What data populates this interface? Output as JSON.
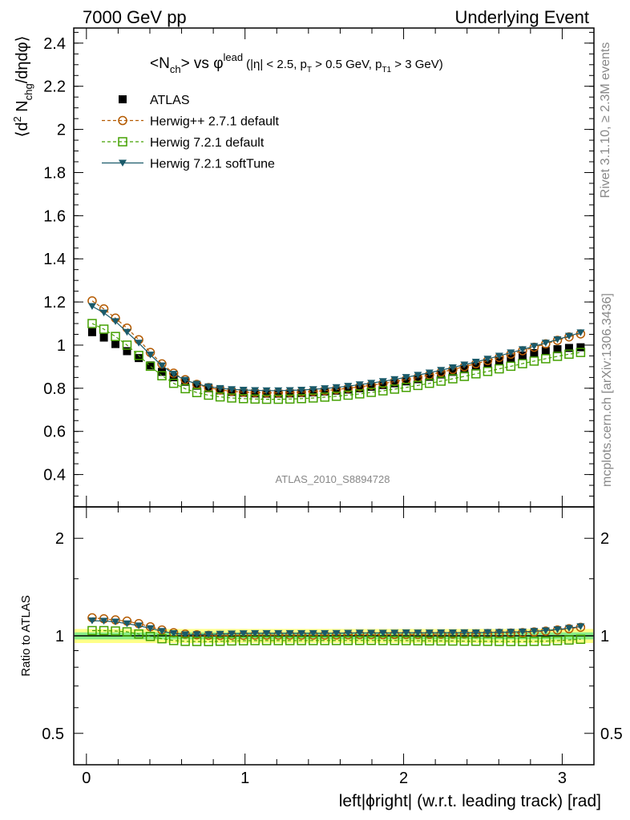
{
  "header": {
    "left": "7000 GeV pp",
    "right": "Underlying Event"
  },
  "side_text": {
    "rivet": "Rivet 3.1.10, ≥ 2.3M events",
    "mcplots": "mcplots.cern.ch [arXiv:1306.3436]"
  },
  "analysis_id": "ATLAS_2010_S8894728",
  "chart_data": [
    {
      "type": "scatter",
      "panel": "main",
      "title_parts": {
        "n": "<N",
        "n_sub": "ch",
        "vs": "> vs φ",
        "sup": "lead",
        "cuts_a": "(|η| < 2.5, p",
        "cuts_sub1": "T",
        "cuts_b": " > 0.5 GeV, p",
        "cuts_sub2": "T1",
        "cuts_c": " > 3 GeV)"
      },
      "ylabel_parts": {
        "a": "⟨d",
        "sup": "2",
        "b": " N",
        "sub": "chg",
        "c": "/dηdφ⟩"
      },
      "xlim": [
        -0.08,
        3.2
      ],
      "ylim": [
        0.25,
        2.47
      ],
      "yticks": [
        0.4,
        0.6,
        0.8,
        1,
        1.2,
        1.4,
        1.6,
        1.8,
        2,
        2.2,
        2.4
      ],
      "ytick_labels": [
        "0.4",
        "0.6",
        "0.8",
        "1",
        "1.2",
        "1.4",
        "1.6",
        "1.8",
        "2",
        "2.2",
        "2.4"
      ],
      "legend_position": "top-left",
      "x": [
        0.036,
        0.11,
        0.183,
        0.256,
        0.33,
        0.403,
        0.476,
        0.55,
        0.623,
        0.696,
        0.77,
        0.843,
        0.916,
        0.99,
        1.063,
        1.136,
        1.21,
        1.283,
        1.356,
        1.43,
        1.503,
        1.576,
        1.65,
        1.723,
        1.796,
        1.87,
        1.943,
        2.016,
        2.09,
        2.163,
        2.236,
        2.31,
        2.383,
        2.456,
        2.53,
        2.603,
        2.676,
        2.75,
        2.823,
        2.896,
        2.97,
        3.043,
        3.116
      ],
      "series": [
        {
          "name": "ATLAS",
          "color": "#000000",
          "marker": "filled-square",
          "line": "none",
          "values": [
            1.06,
            1.035,
            1.005,
            0.972,
            0.94,
            0.906,
            0.876,
            0.851,
            0.83,
            0.812,
            0.8,
            0.79,
            0.783,
            0.779,
            0.776,
            0.775,
            0.775,
            0.776,
            0.778,
            0.781,
            0.785,
            0.789,
            0.794,
            0.8,
            0.807,
            0.815,
            0.823,
            0.832,
            0.842,
            0.853,
            0.864,
            0.876,
            0.888,
            0.901,
            0.913,
            0.926,
            0.939,
            0.952,
            0.963,
            0.973,
            0.981,
            0.987,
            0.99
          ]
        },
        {
          "name": "Herwig++ 2.7.1 default",
          "color": "#b45a00",
          "marker": "open-circle",
          "line": "dashed",
          "values": [
            1.205,
            1.168,
            1.125,
            1.079,
            1.025,
            0.966,
            0.913,
            0.87,
            0.84,
            0.818,
            0.803,
            0.792,
            0.786,
            0.782,
            0.78,
            0.779,
            0.779,
            0.78,
            0.782,
            0.785,
            0.789,
            0.794,
            0.8,
            0.807,
            0.814,
            0.822,
            0.831,
            0.84,
            0.85,
            0.862,
            0.874,
            0.887,
            0.9,
            0.914,
            0.928,
            0.943,
            0.958,
            0.974,
            0.99,
            1.006,
            1.022,
            1.038,
            1.052
          ]
        },
        {
          "name": "Herwig 7.2.1 default",
          "color": "#44a000",
          "marker": "open-square",
          "line": "dashed",
          "values": [
            1.1,
            1.074,
            1.04,
            1.0,
            0.952,
            0.902,
            0.858,
            0.823,
            0.798,
            0.78,
            0.768,
            0.76,
            0.755,
            0.752,
            0.75,
            0.749,
            0.749,
            0.75,
            0.752,
            0.755,
            0.759,
            0.763,
            0.768,
            0.774,
            0.781,
            0.788,
            0.796,
            0.804,
            0.813,
            0.823,
            0.833,
            0.844,
            0.855,
            0.867,
            0.878,
            0.89,
            0.902,
            0.914,
            0.926,
            0.937,
            0.948,
            0.958,
            0.966
          ]
        },
        {
          "name": "Herwig 7.2.1 softTune",
          "color": "#1a5a6a",
          "marker": "filled-triangle-down",
          "line": "solid",
          "values": [
            1.18,
            1.15,
            1.11,
            1.06,
            1.01,
            0.955,
            0.905,
            0.866,
            0.838,
            0.82,
            0.808,
            0.8,
            0.795,
            0.792,
            0.79,
            0.789,
            0.789,
            0.79,
            0.792,
            0.795,
            0.799,
            0.804,
            0.81,
            0.817,
            0.824,
            0.832,
            0.841,
            0.851,
            0.861,
            0.872,
            0.884,
            0.896,
            0.909,
            0.922,
            0.936,
            0.95,
            0.965,
            0.98,
            0.995,
            1.01,
            1.026,
            1.042,
            1.058
          ]
        }
      ]
    },
    {
      "type": "scatter",
      "panel": "ratio",
      "ylabel": "Ratio to ATLAS",
      "xlabel": "left|ϕright| (w.r.t. leading track) [rad]",
      "xlim": [
        -0.08,
        3.2
      ],
      "ylim": [
        0.4,
        2.5
      ],
      "log_y": true,
      "xticks": [
        0,
        1,
        2,
        3
      ],
      "xtick_labels": [
        "0",
        "1",
        "2",
        "3"
      ],
      "yticks": [
        0.5,
        1,
        2
      ],
      "ytick_labels": [
        "0.5",
        "1",
        "2"
      ],
      "band_colors": [
        "#ffff88",
        "#88ee88"
      ],
      "band_half_widths": [
        0.05,
        0.025
      ]
    }
  ]
}
